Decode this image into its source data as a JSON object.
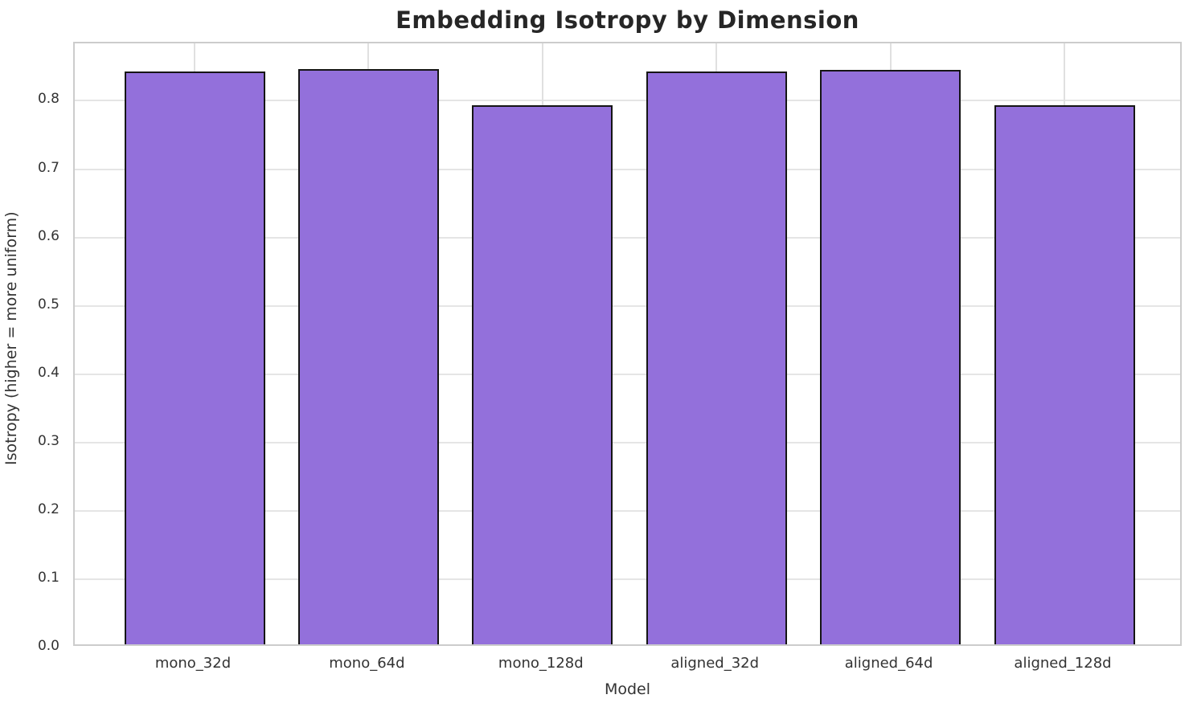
{
  "figure": {
    "background": "#ffffff"
  },
  "chart_data": {
    "type": "bar",
    "title": "Embedding Isotropy by Dimension",
    "xlabel": "Model",
    "ylabel": "Isotropy (higher = more uniform)",
    "categories": [
      "mono_32d",
      "mono_64d",
      "mono_128d",
      "aligned_32d",
      "aligned_64d",
      "aligned_128d"
    ],
    "values": [
      0.838,
      0.842,
      0.789,
      0.838,
      0.841,
      0.789
    ],
    "ylim": [
      0,
      0.884
    ],
    "yticks": [
      0.0,
      0.1,
      0.2,
      0.3,
      0.4,
      0.5,
      0.6,
      0.7,
      0.8
    ],
    "ytick_labels": [
      "0.0",
      "0.1",
      "0.2",
      "0.3",
      "0.4",
      "0.5",
      "0.6",
      "0.7",
      "0.8"
    ],
    "grid": true,
    "grid_axes": "both",
    "legend": false,
    "bar_value_labels": false,
    "colors": {
      "bar_fill": "#9370DB",
      "bar_edge": "#151515",
      "grid_h": "#e5e5e5",
      "grid_v": "#e0e0e0",
      "spine": "#cccccc",
      "title_text": "#262626",
      "axis_text": "#333333"
    }
  }
}
